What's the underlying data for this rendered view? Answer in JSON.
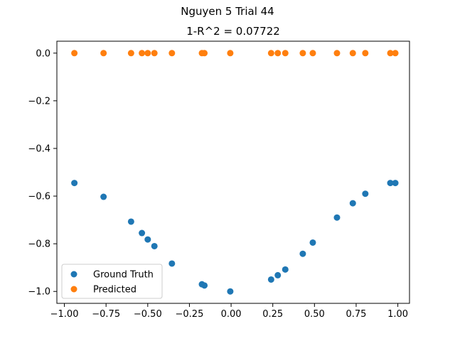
{
  "figure": {
    "suptitle": "Nguyen 5 Trial 44"
  },
  "chart_data": {
    "type": "scatter",
    "title": "1-R^2 = 0.07722",
    "xlabel": "",
    "ylabel": "",
    "xlim": [
      -1.045,
      1.07
    ],
    "ylim": [
      -1.05,
      0.05
    ],
    "x_ticks": [
      -1.0,
      -0.75,
      -0.5,
      -0.25,
      0.0,
      0.25,
      0.5,
      0.75,
      1.0
    ],
    "x_tick_labels": [
      "−1.00",
      "−0.75",
      "−0.50",
      "−0.25",
      "0.00",
      "0.25",
      "0.50",
      "0.75",
      "1.00"
    ],
    "y_ticks": [
      0.0,
      -0.2,
      -0.4,
      -0.6,
      -0.8,
      -1.0
    ],
    "y_tick_labels": [
      "0.0",
      "−0.2",
      "−0.4",
      "−0.6",
      "−0.8",
      "−1.0"
    ],
    "grid": false,
    "legend_position": "lower-left",
    "x": [
      -0.94,
      -0.765,
      -0.6,
      -0.535,
      -0.5,
      -0.46,
      -0.355,
      -0.175,
      -0.16,
      -0.005,
      0.24,
      0.28,
      0.325,
      0.43,
      0.49,
      0.635,
      0.73,
      0.805,
      0.955,
      0.985
    ],
    "series": [
      {
        "name": "Ground Truth",
        "color": "#1f77b4",
        "values": [
          -0.545,
          -0.603,
          -0.707,
          -0.755,
          -0.782,
          -0.81,
          -0.883,
          -0.97,
          -0.975,
          -1.0,
          -0.95,
          -0.932,
          -0.908,
          -0.842,
          -0.795,
          -0.69,
          -0.63,
          -0.59,
          -0.545,
          -0.545
        ]
      },
      {
        "name": "Predicted",
        "color": "#ff7f0e",
        "values": [
          0,
          0,
          0,
          0,
          0,
          0,
          0,
          0,
          0,
          0,
          0,
          0,
          0,
          0,
          0,
          0,
          0,
          0,
          0,
          0
        ]
      }
    ]
  }
}
